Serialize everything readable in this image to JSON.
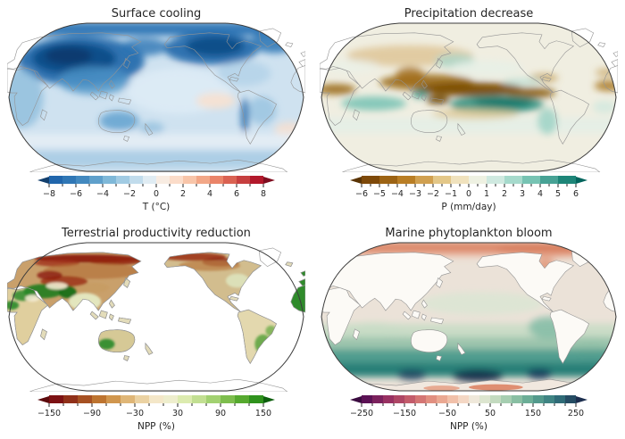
{
  "figure": {
    "background": "#ffffff"
  },
  "panels": [
    {
      "title": "Surface cooling",
      "colorbar": {
        "label": "T (°C)",
        "min": -8,
        "max": 8,
        "major_ticks": [
          -8,
          -6,
          -4,
          -2,
          0,
          2,
          4,
          6,
          8
        ],
        "minor_step": 1,
        "segments": [
          "#2166ac",
          "#3077b5",
          "#4389bf",
          "#5fa0cb",
          "#7fb8d8",
          "#a1cbe3",
          "#c1dcec",
          "#e0ecf3",
          "#f8ece2",
          "#fbdcc9",
          "#f8c5a9",
          "#f2a787",
          "#ea8469",
          "#da6252",
          "#c63f3f",
          "#b2182b"
        ],
        "left_arrow": "#123f6d",
        "right_arrow": "#7f0d20"
      }
    },
    {
      "title": "Precipitation decrease",
      "colorbar": {
        "label": "P (mm/day)",
        "min": -6,
        "max": 6,
        "major_ticks": [
          -6,
          -5,
          -4,
          -3,
          -2,
          -1,
          0,
          1,
          2,
          3,
          4,
          5,
          6
        ],
        "minor_step": 0.5,
        "segments": [
          "#7e4909",
          "#9c6314",
          "#b97e25",
          "#d0a050",
          "#e3c788",
          "#f0e2bd",
          "#eef1e2",
          "#cfe9e0",
          "#a6dacc",
          "#77c3b3",
          "#47a295",
          "#1d8578"
        ],
        "left_arrow": "#5a3404",
        "right_arrow": "#02655d"
      }
    },
    {
      "title": "Terrestrial productivity reduction",
      "colorbar": {
        "label": "NPP (%)",
        "min": -150,
        "max": 150,
        "major_ticks": [
          -150,
          -90,
          -30,
          30,
          90,
          150
        ],
        "minor_step": 20,
        "segments": [
          "#7c1113",
          "#903019",
          "#a65122",
          "#bd7430",
          "#d0964e",
          "#dfb677",
          "#ebd2a2",
          "#f4e7c8",
          "#eeeecd",
          "#dcebaf",
          "#c2df92",
          "#a2d171",
          "#7dbd4d",
          "#56a92f",
          "#2f921c"
        ],
        "left_arrow": "#5c0a0c",
        "right_arrow": "#0d5f0d"
      }
    },
    {
      "title": "Marine phytoplankton bloom",
      "colorbar": {
        "label": "NPP (%)",
        "min": -250,
        "max": 250,
        "major_ticks": [
          -250,
          -150,
          -50,
          50,
          150,
          250
        ],
        "minor_step": 25,
        "segments": [
          "#5c1255",
          "#7b215d",
          "#983162",
          "#ae4665",
          "#c35c6b",
          "#d47674",
          "#e18f80",
          "#eaa892",
          "#f1c0a9",
          "#f4d7c4",
          "#efe8da",
          "#dce5cf",
          "#c3dabf",
          "#a6ceb1",
          "#89bfa3",
          "#6cae97",
          "#53998c",
          "#3f8483",
          "#2f6b77",
          "#254c63"
        ],
        "left_arrow": "#3b0b40",
        "right_arrow": "#1c2e4e"
      }
    }
  ]
}
